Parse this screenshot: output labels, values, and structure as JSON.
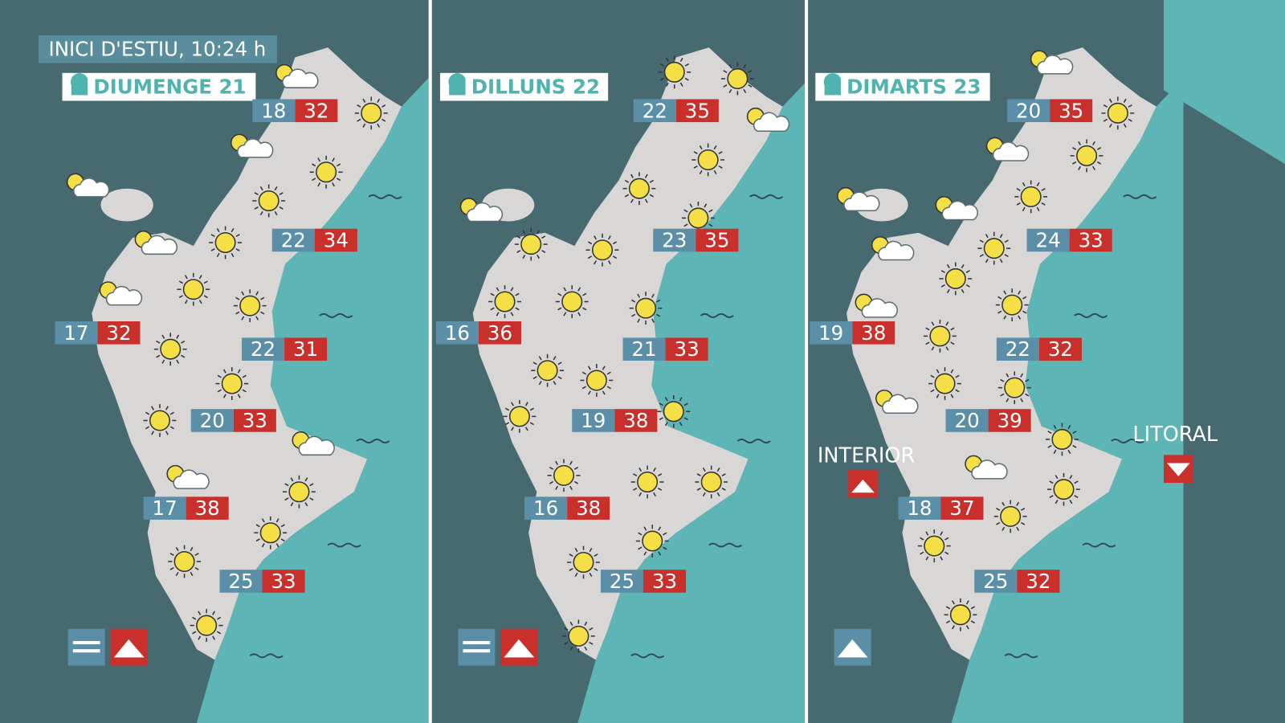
{
  "header": {
    "title": "INICI D'ESTIU, 10:24 h"
  },
  "panels": [
    {
      "day": "DIUMENGE 21",
      "temperatures": [
        {
          "min": 18,
          "max": 32
        },
        {
          "min": 22,
          "max": 34
        },
        {
          "min": 17,
          "max": 32
        },
        {
          "min": 22,
          "max": 31
        },
        {
          "min": 20,
          "max": 33
        },
        {
          "min": 17,
          "max": 38
        },
        {
          "min": 25,
          "max": 33
        }
      ]
    },
    {
      "day": "DILLUNS 22",
      "temperatures": [
        {
          "min": 22,
          "max": 35
        },
        {
          "min": 23,
          "max": 35
        },
        {
          "min": 16,
          "max": 36
        },
        {
          "min": 21,
          "max": 33
        },
        {
          "min": 19,
          "max": 38
        },
        {
          "min": 16,
          "max": 38
        },
        {
          "min": 25,
          "max": 33
        }
      ]
    },
    {
      "day": "DIMARTS 23",
      "temperatures": [
        {
          "min": 20,
          "max": 35
        },
        {
          "min": 24,
          "max": 33
        },
        {
          "min": 19,
          "max": 38
        },
        {
          "min": 22,
          "max": 32
        },
        {
          "min": 20,
          "max": 39
        },
        {
          "min": 18,
          "max": 37
        },
        {
          "min": 25,
          "max": 32
        }
      ]
    }
  ],
  "legend": {
    "interior": "INTERIOR",
    "litoral": "LITORAL"
  }
}
